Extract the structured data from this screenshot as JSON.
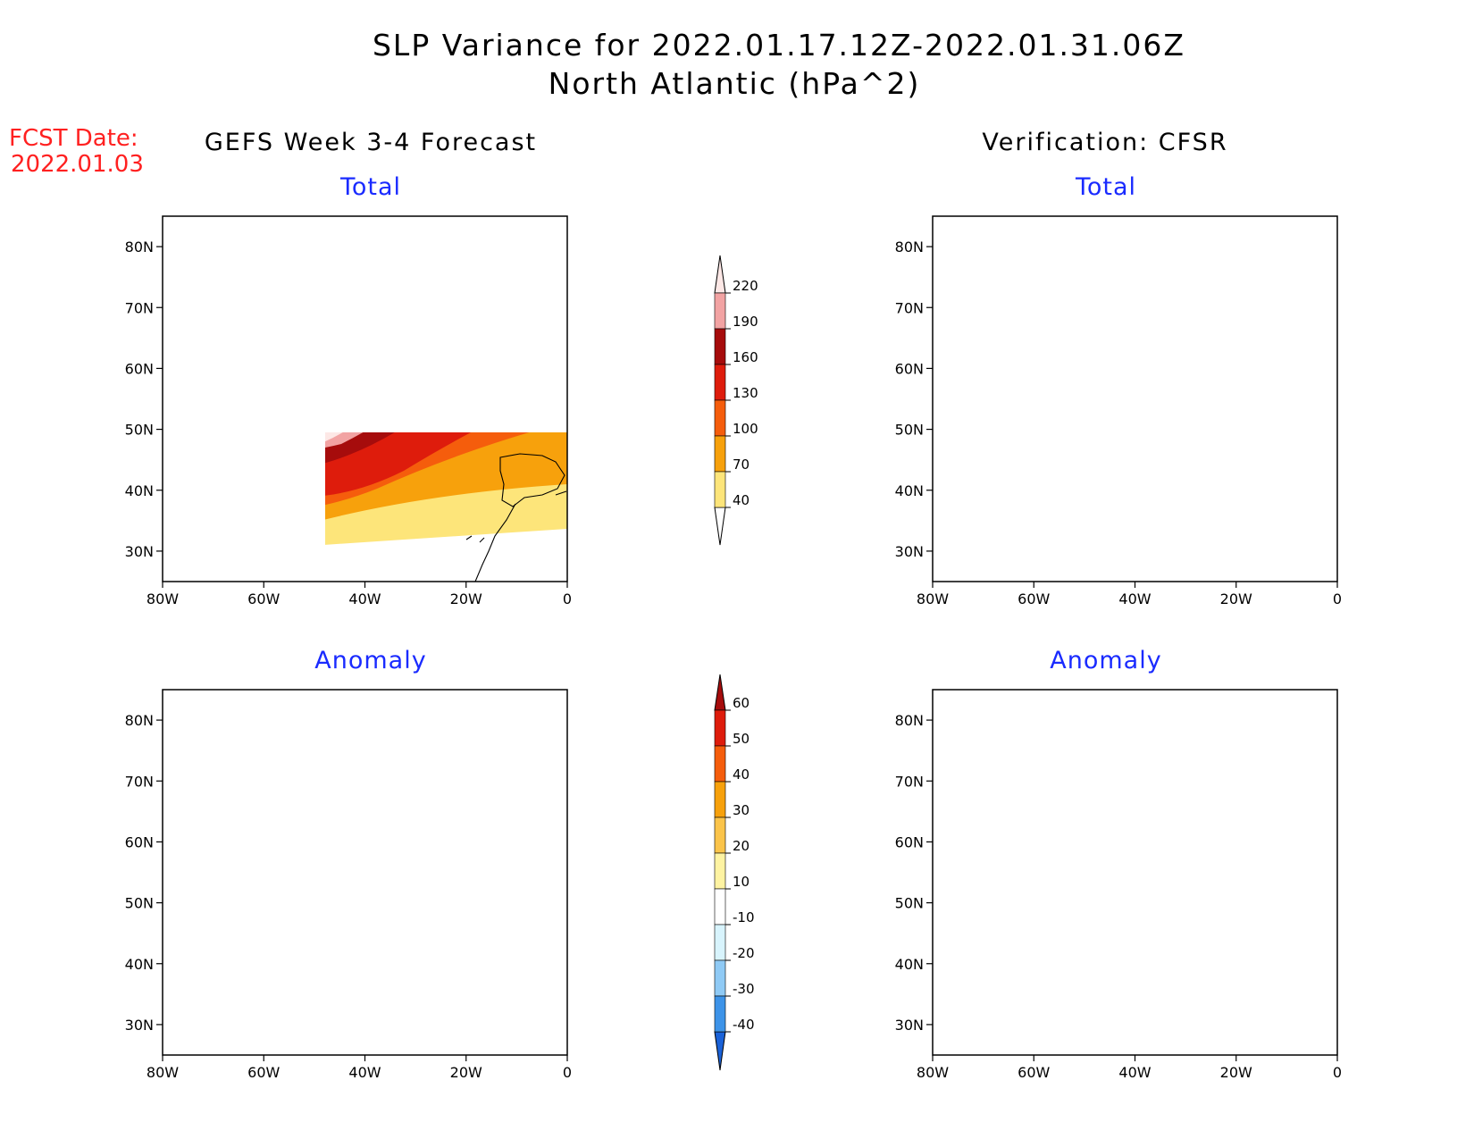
{
  "header": {
    "title_line1": "SLP Variance for 2022.01.17.12Z-2022.01.31.06Z",
    "title_line2": "North Atlantic (hPa^2)",
    "fcst_label": "FCST Date:",
    "fcst_date": "2022.01.03"
  },
  "columns": {
    "left": "GEFS Week 3-4 Forecast",
    "right": "Verification: CFSR"
  },
  "panels": {
    "total_title": "Total",
    "anomaly_title": "Anomaly"
  },
  "axes": {
    "x_ticks": [
      "80W",
      "60W",
      "40W",
      "20W",
      "0"
    ],
    "y_ticks": [
      "80N",
      "70N",
      "60N",
      "50N",
      "40N",
      "30N"
    ],
    "lon_range": [
      -80,
      0
    ],
    "lat_range": [
      25,
      85
    ]
  },
  "colorbars": {
    "total": {
      "levels": [
        "220",
        "190",
        "160",
        "130",
        "100",
        "70",
        "40"
      ],
      "colors": [
        "#fde8e6",
        "#f2a3a3",
        "#a60c0c",
        "#de1c0c",
        "#f55d0c",
        "#f7a10c",
        "#fde57a"
      ]
    },
    "anomaly": {
      "levels": [
        "60",
        "50",
        "40",
        "30",
        "20",
        "10",
        "-10",
        "-20",
        "-30",
        "-40"
      ],
      "colors": [
        "#a60c0c",
        "#de1c0c",
        "#f55d0c",
        "#f7a10c",
        "#fbc44a",
        "#fef3a2",
        "#ffffff",
        "#d8f4fd",
        "#8fcaf5",
        "#3d93e8",
        "#1a62d8"
      ]
    }
  }
}
